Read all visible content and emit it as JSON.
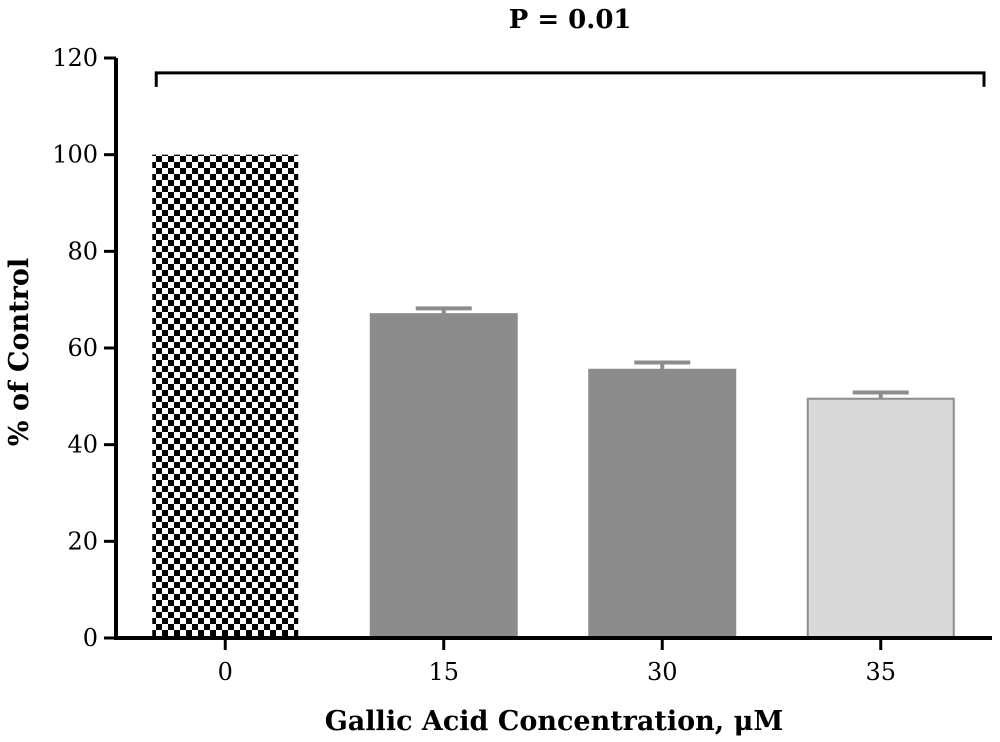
{
  "chart_data": {
    "type": "bar",
    "title": "",
    "xlabel": "Gallic Acid Concentration, μM",
    "ylabel": "% of Control",
    "ylim": [
      0,
      120
    ],
    "yticks": [
      0,
      20,
      40,
      60,
      80,
      100,
      120
    ],
    "yticks_labels": [
      "0",
      "20",
      "40",
      "60",
      "80",
      "100",
      "120"
    ],
    "categories": [
      "0",
      "15",
      "30",
      "35"
    ],
    "values": [
      100,
      67,
      55.5,
      49.5
    ],
    "errors": [
      0,
      1.2,
      1.5,
      1.3
    ],
    "bar_fills": [
      "checkerboard",
      "#8c8c8c",
      "#8c8c8c",
      "#d9d9d9"
    ],
    "grid": false,
    "legend": "none",
    "annotation": {
      "text": "P = 0.01",
      "bracket_y": 119,
      "from_category": "0",
      "to_category": "35"
    }
  }
}
